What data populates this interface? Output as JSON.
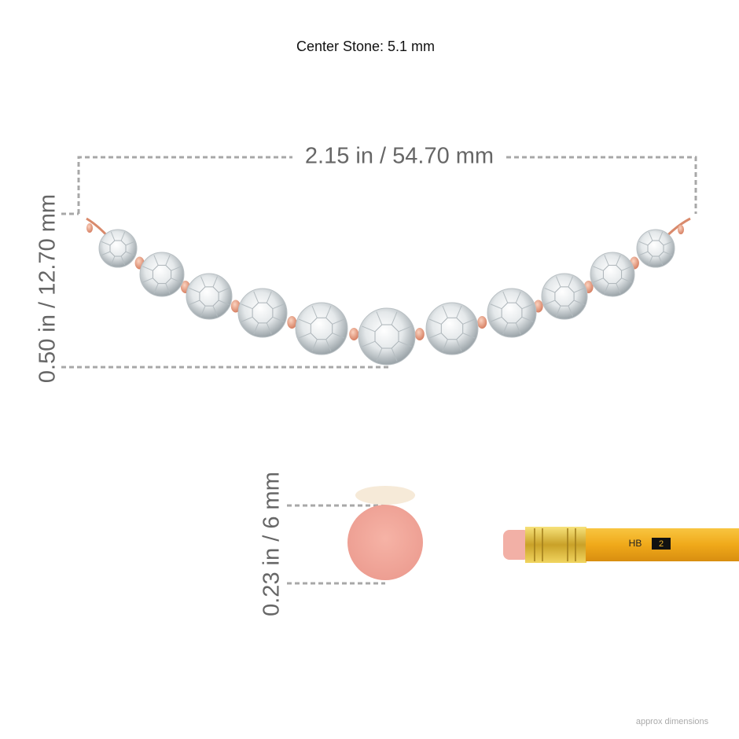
{
  "header": {
    "title": "Center Stone: 5.1 mm"
  },
  "dimensions": {
    "width": "2.15 in / 54.70 mm",
    "height": "0.50 in / 12.70 mm",
    "eraser": "0.23 in / 6 mm"
  },
  "pencil": {
    "grade": "HB",
    "number": "2"
  },
  "footer": {
    "note": "approx dimensions"
  }
}
